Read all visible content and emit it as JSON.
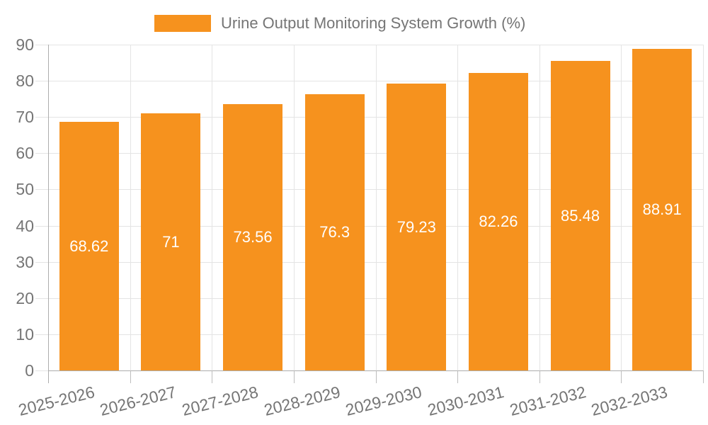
{
  "legend": {
    "label": "Urine Output Monitoring System Growth (%)"
  },
  "chart_data": {
    "type": "bar",
    "title": "Urine Output Monitoring System Growth (%)",
    "categories": [
      "2025-2026",
      "2026-2027",
      "2027-2028",
      "2028-2029",
      "2029-2030",
      "2030-2031",
      "2031-2032",
      "2032-2033"
    ],
    "values": [
      68.62,
      71,
      73.56,
      76.3,
      79.23,
      82.26,
      85.48,
      88.91
    ],
    "value_labels": [
      "68.62",
      "71",
      "73.56",
      "76.3",
      "79.23",
      "82.26",
      "85.48",
      "88.91"
    ],
    "yticks": [
      0,
      10,
      20,
      30,
      40,
      50,
      60,
      70,
      80,
      90
    ],
    "ylim": [
      0,
      90
    ],
    "xlabel": "",
    "ylabel": "",
    "grid": "both",
    "legend_position": "top",
    "colors": {
      "bar": "#f6921e",
      "value_label": "#ffffff",
      "axis_text": "#757575",
      "gridline": "#e4e4e4",
      "axis_line": "#adadad",
      "background": "#ffffff"
    }
  }
}
